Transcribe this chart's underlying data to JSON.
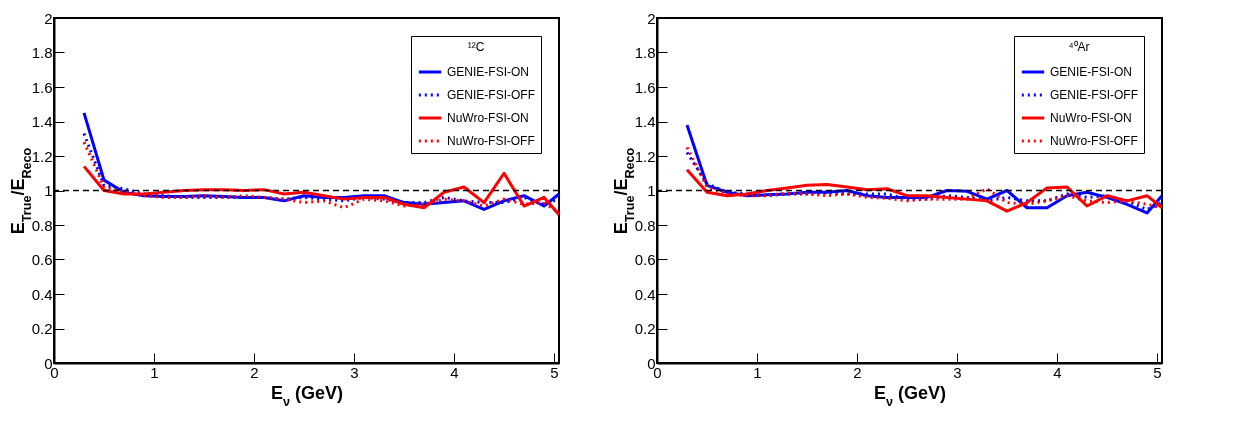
{
  "chart_data": [
    {
      "type": "line",
      "legend_title": "¹²C",
      "xlabel": "E$_{ν}$ (GeV)",
      "ylabel": "E$_{True}$/E$_{Reco}$",
      "x": [
        0.3,
        0.5,
        0.7,
        0.9,
        1.1,
        1.3,
        1.5,
        1.7,
        1.9,
        2.1,
        2.3,
        2.5,
        2.7,
        2.9,
        3.1,
        3.3,
        3.5,
        3.7,
        3.9,
        4.1,
        4.3,
        4.5,
        4.7,
        4.9,
        5.05
      ],
      "xlim": [
        0,
        5.05
      ],
      "xticks": [
        0,
        1,
        2,
        3,
        4,
        5
      ],
      "ylim": [
        0,
        2
      ],
      "yticks": [
        0,
        0.2,
        0.4,
        0.6,
        0.8,
        1,
        1.2,
        1.4,
        1.6,
        1.8,
        2
      ],
      "grid": false,
      "legend": "top right",
      "marker": "none",
      "ref_lines": [
        {
          "axis": "y",
          "value": 1,
          "color": "#000000",
          "line_style": "dashed"
        }
      ],
      "series": [
        {
          "name": "GENIE-FSI-ON",
          "color": "#0000ff",
          "line_style": "solid",
          "values": [
            1.45,
            1.06,
            0.99,
            0.97,
            0.965,
            0.965,
            0.97,
            0.965,
            0.96,
            0.96,
            0.94,
            0.97,
            0.96,
            0.96,
            0.97,
            0.97,
            0.93,
            0.92,
            0.93,
            0.94,
            0.89,
            0.94,
            0.97,
            0.91,
            0.98
          ]
        },
        {
          "name": "GENIE-FSI-OFF",
          "color": "#0000ff",
          "line_style": "dotted",
          "values": [
            1.33,
            1.03,
            1.01,
            0.98,
            0.97,
            0.96,
            0.96,
            0.96,
            0.96,
            0.96,
            0.95,
            0.96,
            0.95,
            0.94,
            0.96,
            0.95,
            0.93,
            0.93,
            0.96,
            0.94,
            0.93,
            0.93,
            0.96,
            0.92,
            0.95
          ]
        },
        {
          "name": "NuWro-FSI-ON",
          "color": "#ff0000",
          "line_style": "solid",
          "values": [
            1.14,
            1.0,
            0.98,
            0.98,
            0.99,
            1.0,
            1.005,
            1.005,
            1.0,
            1.005,
            0.98,
            0.99,
            0.97,
            0.95,
            0.96,
            0.96,
            0.92,
            0.9,
            0.99,
            1.02,
            0.93,
            1.1,
            0.91,
            0.96,
            0.86
          ]
        },
        {
          "name": "NuWro-FSI-OFF",
          "color": "#ff0000",
          "line_style": "dotted",
          "values": [
            1.28,
            1.02,
            0.99,
            0.97,
            0.96,
            0.96,
            0.97,
            0.96,
            0.97,
            0.96,
            0.95,
            0.93,
            0.94,
            0.9,
            0.95,
            0.94,
            0.91,
            0.92,
            0.95,
            0.94,
            0.91,
            0.95,
            0.92,
            0.93,
            0.87
          ]
        }
      ]
    },
    {
      "type": "line",
      "legend_title": "⁴⁰Ar",
      "xlabel": "E$_{ν}$ (GeV)",
      "ylabel": "E$_{True}$/E$_{Reco}$",
      "x": [
        0.3,
        0.5,
        0.7,
        0.9,
        1.1,
        1.3,
        1.5,
        1.7,
        1.9,
        2.1,
        2.3,
        2.5,
        2.7,
        2.9,
        3.1,
        3.3,
        3.5,
        3.7,
        3.9,
        4.1,
        4.3,
        4.5,
        4.7,
        4.9,
        5.05
      ],
      "xlim": [
        0,
        5.05
      ],
      "xticks": [
        0,
        1,
        2,
        3,
        4,
        5
      ],
      "ylim": [
        0,
        2
      ],
      "yticks": [
        0,
        0.2,
        0.4,
        0.6,
        0.8,
        1,
        1.2,
        1.4,
        1.6,
        1.8,
        2
      ],
      "grid": false,
      "legend": "top right",
      "marker": "none",
      "ref_lines": [
        {
          "axis": "y",
          "value": 1,
          "color": "#000000",
          "line_style": "dashed"
        }
      ],
      "series": [
        {
          "name": "GENIE-FSI-ON",
          "color": "#0000ff",
          "line_style": "solid",
          "values": [
            1.38,
            1.03,
            0.99,
            0.97,
            0.975,
            0.98,
            0.99,
            0.99,
            1.0,
            0.97,
            0.96,
            0.96,
            0.96,
            1.0,
            0.995,
            0.95,
            1.0,
            0.9,
            0.9,
            0.97,
            0.99,
            0.96,
            0.92,
            0.87,
            0.97
          ]
        },
        {
          "name": "GENIE-FSI-OFF",
          "color": "#0000ff",
          "line_style": "dotted",
          "values": [
            1.22,
            1.04,
            0.99,
            0.98,
            0.97,
            0.98,
            0.98,
            0.99,
            0.98,
            0.98,
            0.98,
            0.95,
            0.95,
            0.97,
            0.96,
            0.94,
            0.96,
            0.94,
            0.94,
            0.98,
            0.96,
            0.97,
            0.94,
            0.89,
            0.93
          ]
        },
        {
          "name": "NuWro-FSI-ON",
          "color": "#ff0000",
          "line_style": "solid",
          "values": [
            1.12,
            0.99,
            0.97,
            0.98,
            1.0,
            1.015,
            1.03,
            1.035,
            1.02,
            1.005,
            1.01,
            0.97,
            0.97,
            0.96,
            0.95,
            0.94,
            0.88,
            0.93,
            1.015,
            1.02,
            0.91,
            0.97,
            0.94,
            0.97,
            0.9
          ]
        },
        {
          "name": "NuWro-FSI-OFF",
          "color": "#ff0000",
          "line_style": "dotted",
          "values": [
            1.25,
            1.02,
            0.98,
            0.97,
            0.97,
            0.985,
            0.98,
            0.97,
            0.98,
            0.96,
            0.955,
            0.94,
            0.95,
            0.95,
            0.95,
            1.01,
            0.93,
            0.92,
            0.94,
            0.97,
            0.94,
            0.93,
            0.94,
            0.92,
            0.9
          ]
        }
      ]
    }
  ]
}
